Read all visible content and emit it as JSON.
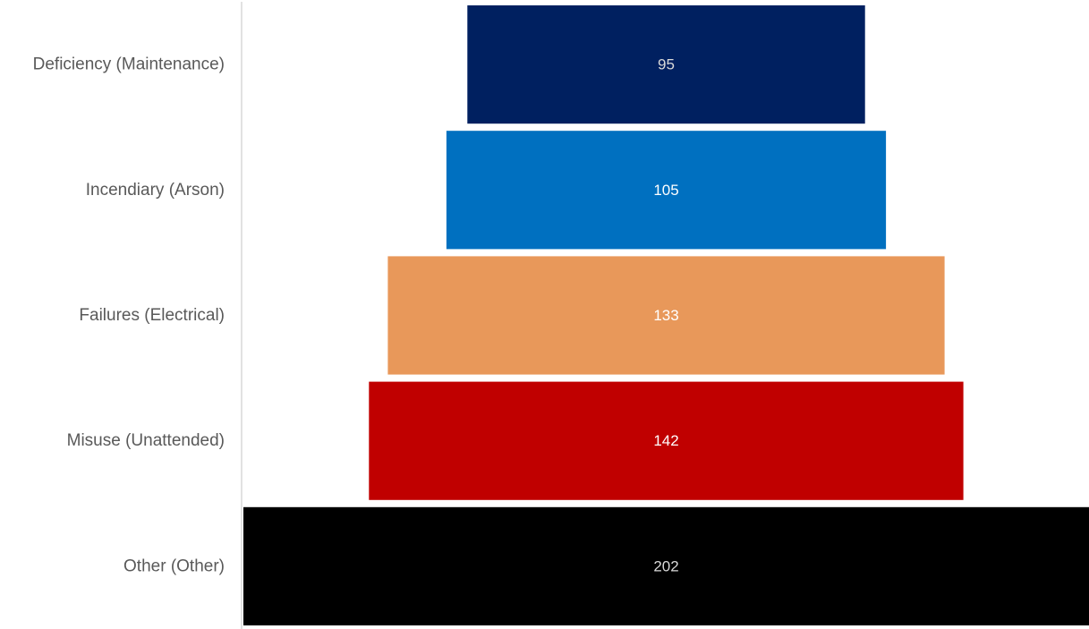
{
  "chart_data": {
    "type": "bar",
    "orientation": "horizontal-funnel",
    "title": "",
    "xlabel": "",
    "ylabel": "",
    "categories": [
      "Deficiency (Maintenance)",
      "Incendiary (Arson)",
      "Failures (Electrical)",
      "Misuse (Unattended)",
      "Other (Other)"
    ],
    "values": [
      95,
      105,
      133,
      142,
      202
    ],
    "xlim": [
      0,
      202
    ],
    "grid": false,
    "legend": "none",
    "colors": [
      "#002060",
      "#0070C0",
      "#E8985A",
      "#C00000",
      "#000000"
    ],
    "value_label_colors": [
      "#D9D9D9",
      "#FFFFFF",
      "#FFFFFF",
      "#FFFFFF",
      "#D9D9D9"
    ],
    "axis_color": "#D9D9D9"
  }
}
